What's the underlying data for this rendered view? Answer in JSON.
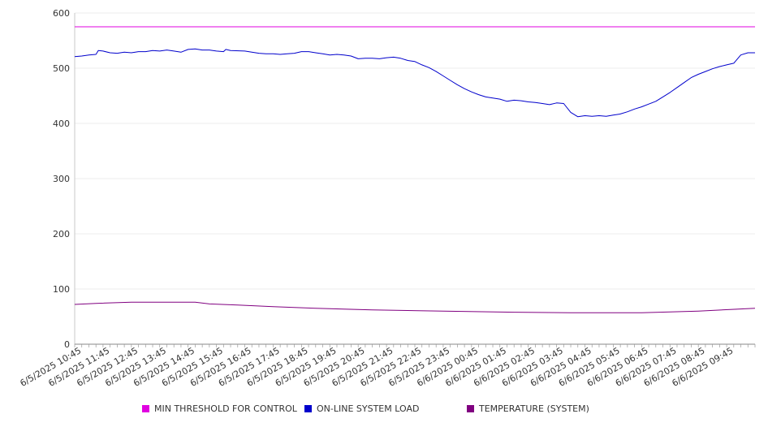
{
  "chart_data": {
    "type": "line",
    "title": "",
    "xlabel": "",
    "ylabel": "",
    "ylim": [
      0,
      600
    ],
    "yticks": [
      0,
      100,
      200,
      300,
      400,
      500,
      600
    ],
    "grid": true,
    "legend_position": "bottom",
    "x_tick_labels": [
      "6/5/2025 10:45",
      "6/5/2025 11:45",
      "6/5/2025 12:45",
      "6/5/2025 13:45",
      "6/5/2025 14:45",
      "6/5/2025 15:45",
      "6/5/2025 16:45",
      "6/5/2025 17:45",
      "6/5/2025 18:45",
      "6/5/2025 19:45",
      "6/5/2025 20:45",
      "6/5/2025 21:45",
      "6/5/2025 22:45",
      "6/5/2025 23:45",
      "6/6/2025 00:45",
      "6/6/2025 01:45",
      "6/6/2025 02:45",
      "6/6/2025 03:45",
      "6/6/2025 04:45",
      "6/6/2025 05:45",
      "6/6/2025 06:45",
      "6/6/2025 07:45",
      "6/6/2025 08:45",
      "6/6/2025 09:45"
    ],
    "x_start": "6/5/2025 10:30",
    "x_end": "6/6/2025 10:30",
    "series": [
      {
        "name": "MIN THRESHOLD FOR CONTROL",
        "color": "#e000e0",
        "points": [
          [
            "6/5/2025 10:30",
            575
          ],
          [
            "6/6/2025 10:30",
            575
          ]
        ]
      },
      {
        "name": "ON-LINE SYSTEM LOAD",
        "color": "#0000cc",
        "points": [
          [
            "6/5/2025 10:30",
            521
          ],
          [
            "6/5/2025 10:45",
            522
          ],
          [
            "6/5/2025 11:00",
            524
          ],
          [
            "6/5/2025 11:15",
            525
          ],
          [
            "6/5/2025 11:20",
            532
          ],
          [
            "6/5/2025 11:30",
            531
          ],
          [
            "6/5/2025 11:45",
            528
          ],
          [
            "6/5/2025 12:00",
            527
          ],
          [
            "6/5/2025 12:15",
            529
          ],
          [
            "6/5/2025 12:30",
            528
          ],
          [
            "6/5/2025 12:45",
            530
          ],
          [
            "6/5/2025 13:00",
            530
          ],
          [
            "6/5/2025 13:15",
            532
          ],
          [
            "6/5/2025 13:30",
            531
          ],
          [
            "6/5/2025 13:45",
            533
          ],
          [
            "6/5/2025 14:00",
            531
          ],
          [
            "6/5/2025 14:15",
            529
          ],
          [
            "6/5/2025 14:30",
            534
          ],
          [
            "6/5/2025 14:45",
            535
          ],
          [
            "6/5/2025 15:00",
            533
          ],
          [
            "6/5/2025 15:15",
            533
          ],
          [
            "6/5/2025 15:30",
            531
          ],
          [
            "6/5/2025 15:45",
            530
          ],
          [
            "6/5/2025 15:50",
            534
          ],
          [
            "6/5/2025 16:00",
            532
          ],
          [
            "6/5/2025 16:30",
            531
          ],
          [
            "6/5/2025 16:45",
            529
          ],
          [
            "6/5/2025 17:00",
            527
          ],
          [
            "6/5/2025 17:15",
            526
          ],
          [
            "6/5/2025 17:30",
            526
          ],
          [
            "6/5/2025 17:45",
            525
          ],
          [
            "6/5/2025 18:00",
            526
          ],
          [
            "6/5/2025 18:15",
            527
          ],
          [
            "6/5/2025 18:30",
            530
          ],
          [
            "6/5/2025 18:45",
            530
          ],
          [
            "6/5/2025 19:00",
            528
          ],
          [
            "6/5/2025 19:15",
            526
          ],
          [
            "6/5/2025 19:30",
            524
          ],
          [
            "6/5/2025 19:45",
            525
          ],
          [
            "6/5/2025 20:00",
            524
          ],
          [
            "6/5/2025 20:15",
            522
          ],
          [
            "6/5/2025 20:30",
            517
          ],
          [
            "6/5/2025 20:45",
            518
          ],
          [
            "6/5/2025 21:00",
            518
          ],
          [
            "6/5/2025 21:15",
            517
          ],
          [
            "6/5/2025 21:30",
            519
          ],
          [
            "6/5/2025 21:45",
            520
          ],
          [
            "6/5/2025 22:00",
            518
          ],
          [
            "6/5/2025 22:15",
            514
          ],
          [
            "6/5/2025 22:30",
            512
          ],
          [
            "6/5/2025 22:45",
            506
          ],
          [
            "6/5/2025 23:00",
            501
          ],
          [
            "6/5/2025 23:15",
            494
          ],
          [
            "6/5/2025 23:30",
            486
          ],
          [
            "6/5/2025 23:45",
            478
          ],
          [
            "6/6/2025 00:00",
            470
          ],
          [
            "6/6/2025 00:15",
            463
          ],
          [
            "6/6/2025 00:30",
            457
          ],
          [
            "6/6/2025 00:45",
            452
          ],
          [
            "6/6/2025 01:00",
            448
          ],
          [
            "6/6/2025 01:15",
            446
          ],
          [
            "6/6/2025 01:30",
            444
          ],
          [
            "6/6/2025 01:45",
            440
          ],
          [
            "6/6/2025 02:00",
            442
          ],
          [
            "6/6/2025 02:15",
            441
          ],
          [
            "6/6/2025 02:30",
            439
          ],
          [
            "6/6/2025 02:45",
            438
          ],
          [
            "6/6/2025 03:00",
            436
          ],
          [
            "6/6/2025 03:15",
            434
          ],
          [
            "6/6/2025 03:30",
            437
          ],
          [
            "6/6/2025 03:45",
            436
          ],
          [
            "6/6/2025 04:00",
            420
          ],
          [
            "6/6/2025 04:15",
            412
          ],
          [
            "6/6/2025 04:30",
            414
          ],
          [
            "6/6/2025 04:45",
            413
          ],
          [
            "6/6/2025 05:00",
            414
          ],
          [
            "6/6/2025 05:15",
            413
          ],
          [
            "6/6/2025 05:30",
            415
          ],
          [
            "6/6/2025 05:45",
            417
          ],
          [
            "6/6/2025 06:00",
            421
          ],
          [
            "6/6/2025 06:15",
            426
          ],
          [
            "6/6/2025 06:30",
            430
          ],
          [
            "6/6/2025 06:45",
            435
          ],
          [
            "6/6/2025 07:00",
            440
          ],
          [
            "6/6/2025 07:15",
            448
          ],
          [
            "6/6/2025 07:30",
            456
          ],
          [
            "6/6/2025 07:45",
            465
          ],
          [
            "6/6/2025 08:00",
            474
          ],
          [
            "6/6/2025 08:15",
            483
          ],
          [
            "6/6/2025 08:30",
            489
          ],
          [
            "6/6/2025 08:45",
            494
          ],
          [
            "6/6/2025 09:00",
            499
          ],
          [
            "6/6/2025 09:15",
            503
          ],
          [
            "6/6/2025 09:30",
            506
          ],
          [
            "6/6/2025 09:45",
            509
          ],
          [
            "6/6/2025 10:00",
            524
          ],
          [
            "6/6/2025 10:15",
            528
          ],
          [
            "6/6/2025 10:30",
            528
          ]
        ]
      },
      {
        "name": "TEMPERATURE (SYSTEM)",
        "color": "#800080",
        "points": [
          [
            "6/5/2025 10:30",
            72
          ],
          [
            "6/5/2025 11:15",
            74
          ],
          [
            "6/5/2025 12:30",
            76
          ],
          [
            "6/5/2025 14:45",
            76
          ],
          [
            "6/5/2025 15:15",
            73
          ],
          [
            "6/5/2025 16:15",
            71
          ],
          [
            "6/5/2025 17:30",
            68
          ],
          [
            "6/5/2025 19:00",
            65
          ],
          [
            "6/5/2025 21:00",
            62
          ],
          [
            "6/5/2025 23:30",
            60
          ],
          [
            "6/6/2025 02:00",
            58
          ],
          [
            "6/6/2025 04:00",
            57
          ],
          [
            "6/6/2025 06:30",
            57
          ],
          [
            "6/6/2025 08:30",
            60
          ],
          [
            "6/6/2025 10:30",
            65
          ]
        ]
      }
    ]
  }
}
